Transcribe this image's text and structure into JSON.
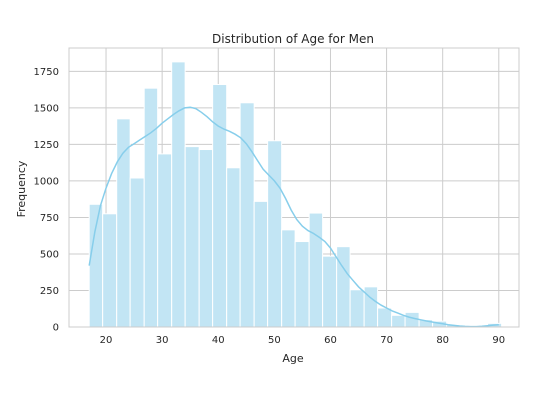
{
  "chart_data": {
    "type": "bar",
    "title": "Distribution of Age for Men",
    "xlabel": "Age",
    "ylabel": "Frequency",
    "xlim": [
      13.4,
      93.6
    ],
    "ylim": [
      0,
      1910
    ],
    "xticks": [
      20,
      30,
      40,
      50,
      60,
      70,
      80,
      90
    ],
    "yticks": [
      0,
      250,
      500,
      750,
      1000,
      1250,
      1500,
      1750
    ],
    "grid": true,
    "bins": [
      {
        "x0": 17.0,
        "x1": 19.4,
        "value": 840
      },
      {
        "x0": 19.4,
        "x1": 21.9,
        "value": 775
      },
      {
        "x0": 21.9,
        "x1": 24.3,
        "value": 1425
      },
      {
        "x0": 24.3,
        "x1": 26.8,
        "value": 1020
      },
      {
        "x0": 26.8,
        "x1": 29.2,
        "value": 1635
      },
      {
        "x0": 29.2,
        "x1": 31.7,
        "value": 1185
      },
      {
        "x0": 31.7,
        "x1": 34.1,
        "value": 1815
      },
      {
        "x0": 34.1,
        "x1": 36.6,
        "value": 1235
      },
      {
        "x0": 36.6,
        "x1": 39.0,
        "value": 1215
      },
      {
        "x0": 39.0,
        "x1": 41.5,
        "value": 1660
      },
      {
        "x0": 41.5,
        "x1": 43.9,
        "value": 1090
      },
      {
        "x0": 43.9,
        "x1": 46.4,
        "value": 1535
      },
      {
        "x0": 46.4,
        "x1": 48.8,
        "value": 860
      },
      {
        "x0": 48.8,
        "x1": 51.3,
        "value": 1275
      },
      {
        "x0": 51.3,
        "x1": 53.7,
        "value": 665
      },
      {
        "x0": 53.7,
        "x1": 56.2,
        "value": 585
      },
      {
        "x0": 56.2,
        "x1": 58.6,
        "value": 780
      },
      {
        "x0": 58.6,
        "x1": 61.1,
        "value": 485
      },
      {
        "x0": 61.1,
        "x1": 63.5,
        "value": 550
      },
      {
        "x0": 63.5,
        "x1": 66.0,
        "value": 255
      },
      {
        "x0": 66.0,
        "x1": 68.4,
        "value": 275
      },
      {
        "x0": 68.4,
        "x1": 70.9,
        "value": 130
      },
      {
        "x0": 70.9,
        "x1": 73.3,
        "value": 80
      },
      {
        "x0": 73.3,
        "x1": 75.8,
        "value": 100
      },
      {
        "x0": 75.8,
        "x1": 78.2,
        "value": 50
      },
      {
        "x0": 78.2,
        "x1": 80.7,
        "value": 40
      },
      {
        "x0": 80.7,
        "x1": 83.1,
        "value": 15
      },
      {
        "x0": 83.1,
        "x1": 85.6,
        "value": 10
      },
      {
        "x0": 85.6,
        "x1": 88.0,
        "value": 5
      },
      {
        "x0": 88.0,
        "x1": 90.5,
        "value": 25
      }
    ],
    "kde": [
      [
        17,
        420
      ],
      [
        18,
        650
      ],
      [
        19,
        830
      ],
      [
        20,
        950
      ],
      [
        21,
        1050
      ],
      [
        22,
        1130
      ],
      [
        23,
        1190
      ],
      [
        24,
        1230
      ],
      [
        25,
        1255
      ],
      [
        26,
        1280
      ],
      [
        27,
        1305
      ],
      [
        28,
        1330
      ],
      [
        29,
        1360
      ],
      [
        30,
        1395
      ],
      [
        31,
        1425
      ],
      [
        32,
        1455
      ],
      [
        33,
        1480
      ],
      [
        34,
        1500
      ],
      [
        35,
        1505
      ],
      [
        36,
        1495
      ],
      [
        37,
        1470
      ],
      [
        38,
        1440
      ],
      [
        39,
        1405
      ],
      [
        40,
        1375
      ],
      [
        41,
        1355
      ],
      [
        42,
        1340
      ],
      [
        43,
        1320
      ],
      [
        44,
        1295
      ],
      [
        45,
        1255
      ],
      [
        46,
        1200
      ],
      [
        47,
        1140
      ],
      [
        48,
        1080
      ],
      [
        49,
        1040
      ],
      [
        50,
        1000
      ],
      [
        51,
        950
      ],
      [
        52,
        880
      ],
      [
        53,
        800
      ],
      [
        54,
        735
      ],
      [
        55,
        690
      ],
      [
        56,
        660
      ],
      [
        57,
        640
      ],
      [
        58,
        615
      ],
      [
        59,
        585
      ],
      [
        60,
        540
      ],
      [
        61,
        480
      ],
      [
        62,
        420
      ],
      [
        63,
        365
      ],
      [
        64,
        320
      ],
      [
        65,
        275
      ],
      [
        66,
        240
      ],
      [
        67,
        205
      ],
      [
        68,
        175
      ],
      [
        69,
        150
      ],
      [
        70,
        130
      ],
      [
        71,
        110
      ],
      [
        72,
        95
      ],
      [
        73,
        80
      ],
      [
        74,
        68
      ],
      [
        75,
        58
      ],
      [
        76,
        50
      ],
      [
        77,
        42
      ],
      [
        78,
        35
      ],
      [
        79,
        28
      ],
      [
        80,
        22
      ],
      [
        81,
        16
      ],
      [
        82,
        11
      ],
      [
        83,
        7
      ],
      [
        84,
        4
      ],
      [
        85,
        3
      ],
      [
        86,
        3
      ],
      [
        87,
        5
      ],
      [
        88,
        9
      ],
      [
        89,
        13
      ],
      [
        90,
        16
      ]
    ],
    "colors": {
      "bar_fill": "#c2e5f4",
      "bar_edge": "#ffffff",
      "kde_line": "#87ceeb",
      "grid": "#cccccc",
      "axis": "#cccccc"
    }
  }
}
